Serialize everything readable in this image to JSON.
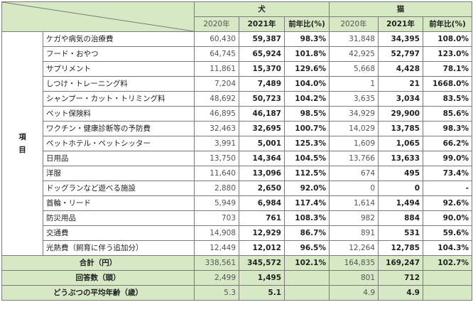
{
  "header": {
    "dog": "犬",
    "cat": "猫",
    "y2020": "2020年",
    "y2021": "2021年",
    "ratio": "前年比(%)"
  },
  "side_label": [
    "項",
    "目"
  ],
  "rows": [
    {
      "label": "ケガや病気の治療費",
      "d20": "60,430",
      "d21": "59,387",
      "dr": "98.3%",
      "c20": "31,848",
      "c21": "34,395",
      "cr": "108.0%"
    },
    {
      "label": "フード・おやつ",
      "d20": "64,745",
      "d21": "65,924",
      "dr": "101.8%",
      "c20": "42,925",
      "c21": "52,797",
      "cr": "123.0%"
    },
    {
      "label": "サプリメント",
      "d20": "11,861",
      "d21": "15,370",
      "dr": "129.6%",
      "c20": "5,668",
      "c21": "4,428",
      "cr": "78.1%"
    },
    {
      "label": "しつけ・トレーニング料",
      "d20": "7,204",
      "d21": "7,489",
      "dr": "104.0%",
      "c20": "1",
      "c21": "21",
      "cr": "1668.0%"
    },
    {
      "label": "シャンプー・カット・トリミング料",
      "d20": "48,692",
      "d21": "50,723",
      "dr": "104.2%",
      "c20": "3,635",
      "c21": "3,034",
      "cr": "83.5%"
    },
    {
      "label": "ペット保険料",
      "d20": "46,895",
      "d21": "46,187",
      "dr": "98.5%",
      "c20": "34,929",
      "c21": "29,900",
      "cr": "85.6%"
    },
    {
      "label": "ワクチン・健康診断等の予防費",
      "d20": "32,463",
      "d21": "32,695",
      "dr": "100.7%",
      "c20": "14,029",
      "c21": "13,785",
      "cr": "98.3%"
    },
    {
      "label": "ペットホテル・ペットシッター",
      "d20": "3,991",
      "d21": "5,001",
      "dr": "125.3%",
      "c20": "1,609",
      "c21": "1,065",
      "cr": "66.2%"
    },
    {
      "label": "日用品",
      "d20": "13,750",
      "d21": "14,364",
      "dr": "104.5%",
      "c20": "13,766",
      "c21": "13,633",
      "cr": "99.0%"
    },
    {
      "label": "洋服",
      "d20": "11,640",
      "d21": "13,096",
      "dr": "112.5%",
      "c20": "674",
      "c21": "495",
      "cr": "73.4%"
    },
    {
      "label": "ドッグランなど遊べる施設",
      "d20": "2,880",
      "d21": "2,650",
      "dr": "92.0%",
      "c20": "0",
      "c21": "0",
      "cr": "-"
    },
    {
      "label": "首輪・リード",
      "d20": "5,949",
      "d21": "6,984",
      "dr": "117.4%",
      "c20": "1,614",
      "c21": "1,494",
      "cr": "92.6%"
    },
    {
      "label": "防災用品",
      "d20": "703",
      "d21": "761",
      "dr": "108.3%",
      "c20": "982",
      "c21": "884",
      "cr": "90.0%"
    },
    {
      "label": "交通費",
      "d20": "14,908",
      "d21": "12,929",
      "dr": "86.7%",
      "c20": "891",
      "c21": "531",
      "cr": "59.6%"
    },
    {
      "label": "光熱費（飼育に伴う追加分）",
      "d20": "12,449",
      "d21": "12,012",
      "dr": "96.5%",
      "c20": "12,264",
      "c21": "12,785",
      "cr": "104.3%"
    }
  ],
  "total": {
    "label": "合計（円）",
    "d20": "338,561",
    "d21": "345,572",
    "dr": "102.1%",
    "c20": "164,835",
    "c21": "169,247",
    "cr": "102.7%"
  },
  "respondents": {
    "label": "回答数（頭）",
    "d20": "2,499",
    "d21": "1,495",
    "c20": "801",
    "c21": "712"
  },
  "age": {
    "label": "どうぶつの平均年齢（歳）",
    "d20": "5.3",
    "d21": "5.1",
    "c20": "4.9",
    "c21": "4.9"
  }
}
